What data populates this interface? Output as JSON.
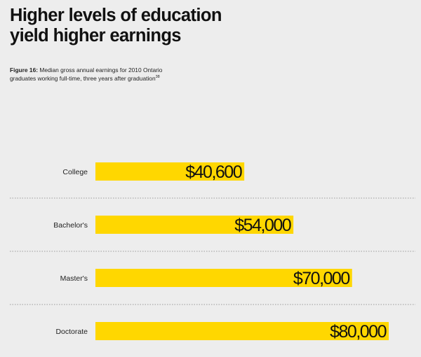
{
  "title_lines": [
    "Higher levels of education",
    "yield higher earnings"
  ],
  "caption": {
    "figure_label": "Figure 16:",
    "line1": "Median gross annual earnings for 2010 Ontario",
    "line2": "graduates working full-time, three years after graduation",
    "footnote": "38"
  },
  "colors": {
    "bar": "#ffd700",
    "background": "#ededed",
    "divider": "#9a9a9a"
  },
  "chart_data": {
    "type": "bar",
    "orientation": "horizontal",
    "categories": [
      "College",
      "Bachelor's",
      "Master's",
      "Doctorate"
    ],
    "values": [
      40600,
      54000,
      70000,
      80000
    ],
    "value_labels": [
      "$40,600",
      "$54,000",
      "$70,000",
      "$80,000"
    ],
    "xlim": [
      0,
      80000
    ],
    "grid": false,
    "legend": "none"
  }
}
